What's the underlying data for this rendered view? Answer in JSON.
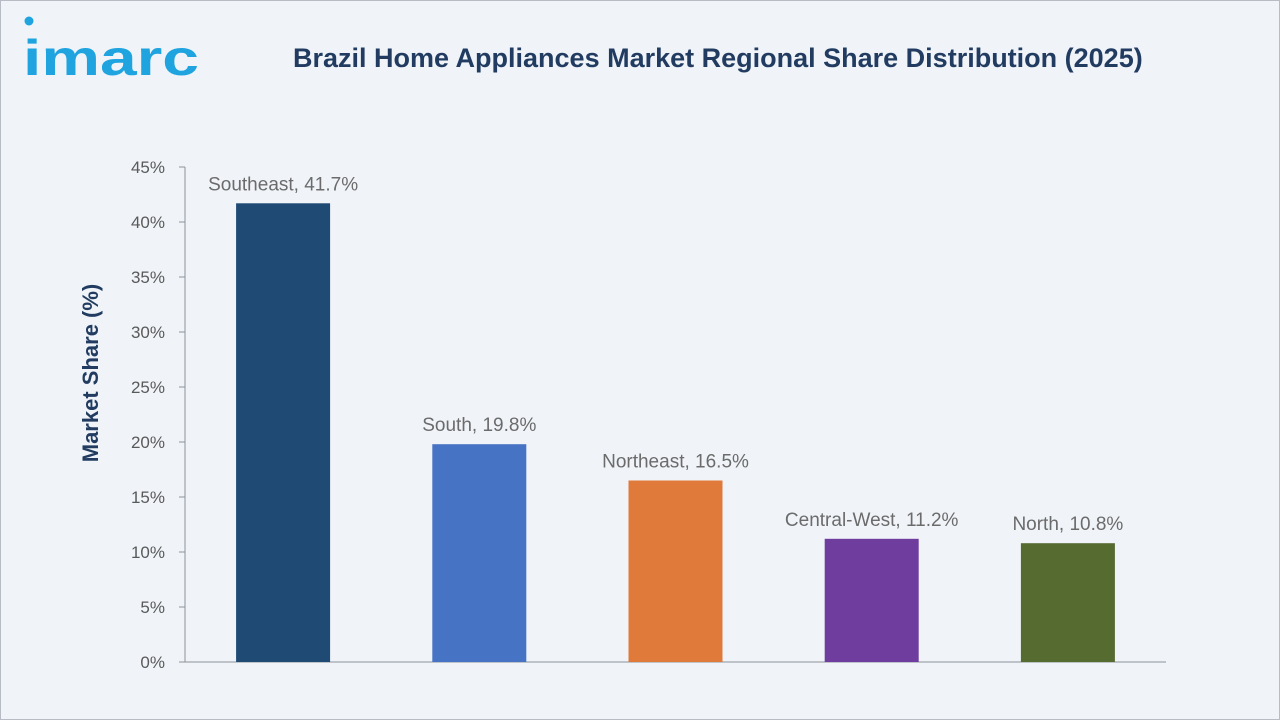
{
  "brand": {
    "logo_text": "imarc",
    "accent_color": "#1fa4e0"
  },
  "chart_data": {
    "type": "bar",
    "title": "Brazil Home Appliances Market Regional Share Distribution (2025)",
    "xlabel": "",
    "ylabel": "Market Share (%)",
    "ylim": [
      0,
      45
    ],
    "yticks": [
      0,
      5,
      10,
      15,
      20,
      25,
      30,
      35,
      40,
      45
    ],
    "ytick_format": "{v}%",
    "categories": [
      "Southeast",
      "South",
      "Northeast",
      "Central-West",
      "North"
    ],
    "values": [
      41.7,
      19.8,
      16.5,
      11.2,
      10.8
    ],
    "data_labels": [
      "Southeast, 41.7%",
      "South, 19.8%",
      "Northeast, 16.5%",
      "Central-West, 11.2%",
      "North, 10.8%"
    ],
    "colors": [
      "#1e4a73",
      "#4673c4",
      "#df7a3a",
      "#6e3d9e",
      "#566b30"
    ],
    "grid": false,
    "legend": "none"
  }
}
